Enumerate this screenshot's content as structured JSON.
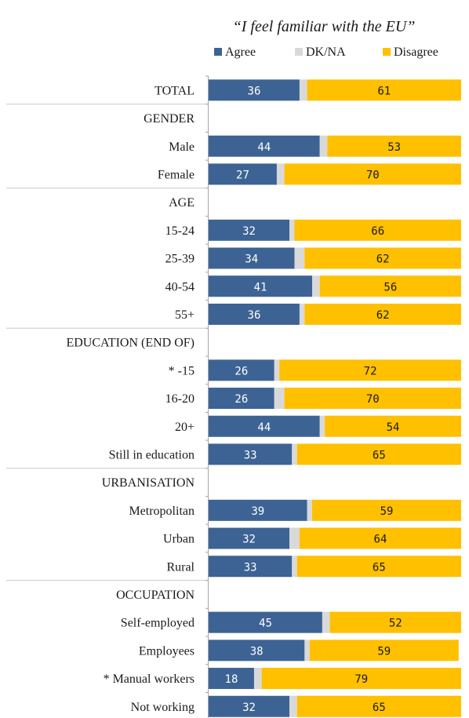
{
  "chart_data": {
    "type": "bar",
    "orientation": "horizontal",
    "stacked": true,
    "title": "“I feel familiar with the EU”",
    "legend_position": "top",
    "xlim": [
      0,
      100
    ],
    "series": [
      {
        "name": "Agree",
        "color": "#3D6394"
      },
      {
        "name": "DK/NA",
        "color": "#D9D9D9"
      },
      {
        "name": "Disagree",
        "color": "#FFC000"
      }
    ],
    "rows": [
      {
        "label": "TOTAL",
        "values": [
          36,
          3,
          61
        ],
        "header": false
      },
      {
        "label": "GENDER",
        "values": null,
        "header": true
      },
      {
        "label": "Male",
        "values": [
          44,
          3,
          53
        ],
        "header": false
      },
      {
        "label": "Female",
        "values": [
          27,
          3,
          70
        ],
        "header": false
      },
      {
        "label": "AGE",
        "values": null,
        "header": true
      },
      {
        "label": "15-24",
        "values": [
          32,
          2,
          66
        ],
        "header": false
      },
      {
        "label": "25-39",
        "values": [
          34,
          4,
          62
        ],
        "header": false
      },
      {
        "label": "40-54",
        "values": [
          41,
          3,
          56
        ],
        "header": false
      },
      {
        "label": "55+",
        "values": [
          36,
          2,
          62
        ],
        "header": false
      },
      {
        "label": "EDUCATION (END OF)",
        "values": null,
        "header": true
      },
      {
        "label": "* -15",
        "values": [
          26,
          2,
          72
        ],
        "header": false
      },
      {
        "label": "16-20",
        "values": [
          26,
          4,
          70
        ],
        "header": false
      },
      {
        "label": "20+",
        "values": [
          44,
          2,
          54
        ],
        "header": false
      },
      {
        "label": "Still in education",
        "values": [
          33,
          2,
          65
        ],
        "header": false
      },
      {
        "label": "URBANISATION",
        "values": null,
        "header": true
      },
      {
        "label": "Metropolitan",
        "values": [
          39,
          2,
          59
        ],
        "header": false
      },
      {
        "label": "Urban",
        "values": [
          32,
          4,
          64
        ],
        "header": false
      },
      {
        "label": "Rural",
        "values": [
          33,
          2,
          65
        ],
        "header": false
      },
      {
        "label": "OCCUPATION",
        "values": null,
        "header": true
      },
      {
        "label": "Self-employed",
        "values": [
          45,
          3,
          52
        ],
        "header": false
      },
      {
        "label": "Employees",
        "values": [
          38,
          2,
          59
        ],
        "header": false
      },
      {
        "label": "* Manual workers",
        "values": [
          18,
          3,
          79
        ],
        "header": false
      },
      {
        "label": "Not working",
        "values": [
          32,
          3,
          65
        ],
        "header": false
      }
    ]
  }
}
